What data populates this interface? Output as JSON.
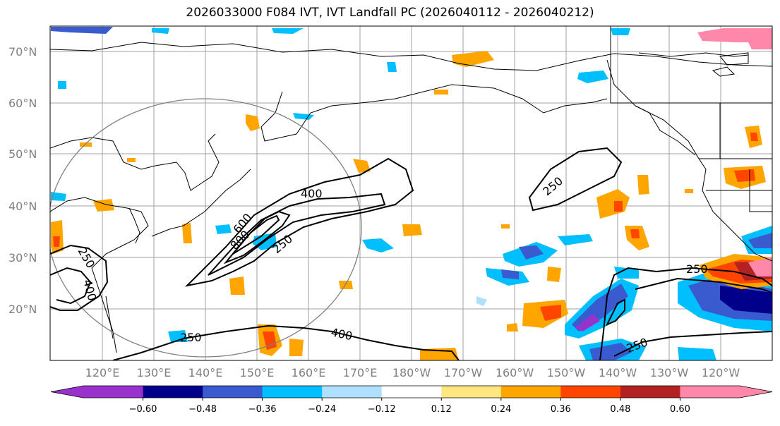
{
  "title": "2026033000 F084 IVT, IVT Landfall PC (2026040112 - 2026040212)",
  "lat_labels": [
    "70°N",
    "60°N",
    "50°N",
    "40°N",
    "30°N",
    "20°N"
  ],
  "lon_labels": [
    "120°E",
    "130°E",
    "140°E",
    "150°E",
    "160°E",
    "170°E",
    "180°W",
    "170°W",
    "160°W",
    "150°W",
    "140°W",
    "130°W",
    "120°W"
  ],
  "contour_labels": [
    "400",
    "250",
    "800",
    "600",
    "250",
    "250",
    "400",
    "250",
    "400",
    "250",
    "250"
  ],
  "colorbar": {
    "ticks": [
      "−0.60",
      "−0.48",
      "−0.36",
      "−0.24",
      "−0.12",
      "0.12",
      "0.24",
      "0.36",
      "0.48",
      "0.60"
    ],
    "colors": [
      "#9932cc",
      "#00008b",
      "#3a5bcf",
      "#00bfff",
      "#b0e0ff",
      "#ffffff",
      "#ffe680",
      "#ffa500",
      "#ff4500",
      "#b22222",
      "#ff88aa"
    ]
  }
}
